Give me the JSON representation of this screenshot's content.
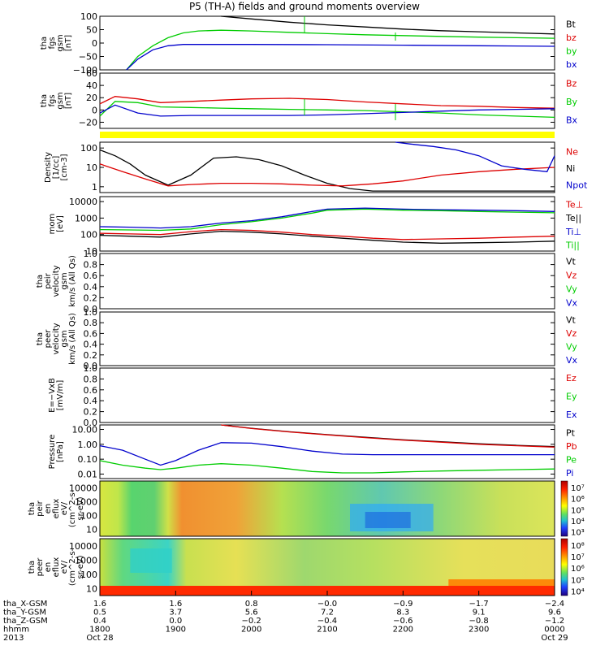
{
  "title": "P5 (TH-A) fields and ground moments overview",
  "colors": {
    "black": "#000000",
    "red": "#dd0000",
    "green": "#00cc00",
    "blue": "#0000cc",
    "yellow": "#ffff00",
    "brown": "#7a1a1a"
  },
  "chart_data": [
    {
      "type": "line",
      "panel": "fgs_gsm_total",
      "ylabel": [
        "tha",
        "fgs",
        "gsm",
        "[nT]"
      ],
      "ylim": [
        -100,
        100
      ],
      "yticks": [
        "100",
        "50",
        "0",
        "−50",
        "−100"
      ],
      "legend": [
        "Bt",
        "bz",
        "by",
        "bx"
      ],
      "legend_colors": [
        "black",
        "red",
        "green",
        "blue"
      ],
      "x_hours": [
        18.3,
        18.5,
        18.8,
        19.1,
        19.5,
        20.0,
        20.5,
        21.0,
        21.5,
        22.0,
        22.5,
        23.0,
        23.5,
        24.0
      ],
      "series": [
        {
          "name": "Bt",
          "color": "black",
          "x": [
            19.6,
            20.0,
            20.5,
            21.0,
            21.5,
            22.0,
            22.5,
            23.0,
            23.5,
            24.0
          ],
          "values": [
            100,
            90,
            78,
            68,
            60,
            52,
            46,
            42,
            38,
            34
          ]
        },
        {
          "name": "by",
          "color": "green",
          "x": [
            18.35,
            18.5,
            18.7,
            18.9,
            19.1,
            19.3,
            19.6,
            20.0,
            20.5,
            21.0,
            21.5,
            22.0,
            22.5,
            23.0,
            23.5,
            24.0
          ],
          "values": [
            -100,
            -50,
            -10,
            20,
            38,
            45,
            48,
            45,
            40,
            35,
            31,
            28,
            25,
            22,
            20,
            18
          ]
        },
        {
          "name": "bx",
          "color": "blue",
          "x": [
            18.35,
            18.5,
            18.7,
            18.9,
            19.1,
            19.5,
            20.0,
            21.0,
            22.0,
            23.0,
            24.0
          ],
          "values": [
            -100,
            -60,
            -25,
            -10,
            -5,
            -5,
            -5,
            -6,
            -8,
            -10,
            -12
          ]
        }
      ]
    },
    {
      "type": "line",
      "panel": "fgs_gsm_detrended",
      "ylabel": [
        "tha",
        "fgs",
        "gsm",
        "[nT]"
      ],
      "ylim": [
        -30,
        60
      ],
      "yticks": [
        "60",
        "40",
        "20",
        "0",
        "−20"
      ],
      "legend": [
        "Bz",
        "By",
        "Bx"
      ],
      "legend_colors": [
        "red",
        "green",
        "blue"
      ],
      "series": [
        {
          "name": "Bz",
          "color": "red",
          "x": [
            18.0,
            18.2,
            18.5,
            18.8,
            19.2,
            19.6,
            20.0,
            20.5,
            21.0,
            21.5,
            22.0,
            22.5,
            23.0,
            23.5,
            24.0
          ],
          "values": [
            10,
            22,
            18,
            12,
            14,
            16,
            18,
            19,
            17,
            13,
            10,
            7,
            6,
            4,
            3
          ]
        },
        {
          "name": "By",
          "color": "green",
          "x": [
            18.0,
            18.2,
            18.5,
            18.8,
            19.2,
            19.6,
            20.0,
            20.5,
            21.0,
            21.5,
            22.0,
            22.5,
            23.0,
            23.5,
            24.0
          ],
          "values": [
            -10,
            14,
            12,
            5,
            4,
            3,
            2,
            1,
            0,
            -1,
            -3,
            -5,
            -8,
            -10,
            -12
          ]
        },
        {
          "name": "Bx",
          "color": "blue",
          "x": [
            18.0,
            18.2,
            18.5,
            18.8,
            19.2,
            19.6,
            20.0,
            20.5,
            21.0,
            21.5,
            22.0,
            22.5,
            23.0,
            23.5,
            24.0
          ],
          "values": [
            -5,
            8,
            -5,
            -10,
            -9,
            -9,
            -9,
            -9,
            -8,
            -6,
            -4,
            -2,
            0,
            1,
            2
          ]
        }
      ]
    },
    {
      "type": "line",
      "panel": "density",
      "ylabel": [
        "Density",
        "[1/cc]",
        "[cm-3]"
      ],
      "ylim_log": [
        0.5,
        200
      ],
      "yticks": [
        "100",
        "10",
        "1"
      ],
      "legend": [
        "Ne",
        "Ni",
        "Npot"
      ],
      "legend_colors": [
        "red",
        "black",
        "blue"
      ],
      "series": [
        {
          "name": "Ni",
          "color": "black",
          "x": [
            18.0,
            18.2,
            18.4,
            18.6,
            18.9,
            19.2,
            19.5,
            19.8,
            20.1,
            20.4,
            20.7,
            21.0,
            21.3,
            21.6,
            22.0,
            22.5,
            23.0,
            23.5,
            24.0
          ],
          "values": [
            80,
            40,
            15,
            4,
            1.2,
            4,
            30,
            35,
            25,
            12,
            4,
            1.5,
            0.8,
            0.6,
            0.6,
            0.6,
            0.6,
            0.6,
            0.6
          ]
        },
        {
          "name": "Ne",
          "color": "red",
          "x": [
            18.0,
            18.3,
            18.6,
            18.9,
            19.2,
            19.6,
            20.0,
            20.4,
            20.8,
            21.2,
            21.6,
            22.0,
            22.5,
            23.0,
            23.5,
            24.0
          ],
          "values": [
            15,
            6,
            2.5,
            1.1,
            1.3,
            1.5,
            1.5,
            1.4,
            1.2,
            1.1,
            1.4,
            2.0,
            4,
            6,
            8,
            10
          ]
        },
        {
          "name": "Npot",
          "color": "blue",
          "x": [
            21.9,
            22.1,
            22.4,
            22.7,
            23.0,
            23.3,
            23.6,
            23.9,
            24.0
          ],
          "values": [
            200,
            160,
            120,
            80,
            40,
            12,
            8,
            6,
            40
          ]
        }
      ]
    },
    {
      "type": "line",
      "panel": "temperature",
      "ylabel": [
        "mom",
        "[eV]"
      ],
      "ylim_log": [
        10,
        20000
      ],
      "yticks": [
        "10000",
        "1000",
        "100",
        "10"
      ],
      "legend": [
        "Te⊥",
        "Te||",
        "Ti⊥",
        "Ti||"
      ],
      "legend_colors": [
        "red",
        "black",
        "blue",
        "green"
      ],
      "series": [
        {
          "name": "Ti⊥",
          "color": "blue",
          "x": [
            18.0,
            18.4,
            18.8,
            19.2,
            19.6,
            20.0,
            20.4,
            20.8,
            21.0,
            21.5,
            22.0,
            22.5,
            23.0,
            23.5,
            24.0
          ],
          "values": [
            300,
            280,
            250,
            300,
            500,
            700,
            1200,
            2500,
            3500,
            4000,
            3500,
            3200,
            3000,
            2800,
            2500
          ]
        },
        {
          "name": "Ti||",
          "color": "green",
          "x": [
            18.0,
            18.4,
            18.8,
            19.2,
            19.6,
            20.0,
            20.4,
            20.8,
            21.0,
            21.5,
            22.0,
            22.5,
            23.0,
            23.5,
            24.0
          ],
          "values": [
            200,
            190,
            180,
            220,
            400,
            600,
            1000,
            2000,
            3000,
            3500,
            3000,
            2800,
            2500,
            2300,
            2100
          ]
        },
        {
          "name": "Te⊥",
          "color": "red",
          "x": [
            18.0,
            18.4,
            18.8,
            19.2,
            19.6,
            20.0,
            20.4,
            20.8,
            21.2,
            21.6,
            22.0,
            22.5,
            23.0,
            23.5,
            24.0
          ],
          "values": [
            120,
            110,
            100,
            150,
            200,
            180,
            140,
            100,
            80,
            60,
            50,
            55,
            60,
            70,
            80
          ]
        },
        {
          "name": "Te||",
          "color": "black",
          "x": [
            18.0,
            18.4,
            18.8,
            19.2,
            19.6,
            20.0,
            20.4,
            20.8,
            21.2,
            21.6,
            22.0,
            22.5,
            23.0,
            23.5,
            24.0
          ],
          "values": [
            90,
            80,
            70,
            110,
            160,
            140,
            110,
            80,
            60,
            45,
            35,
            30,
            32,
            35,
            40
          ]
        }
      ]
    },
    {
      "type": "line",
      "panel": "peir_velocity",
      "ylabel": [
        "tha",
        "peir",
        "velocity",
        "gsm",
        "km/s (All Qs)"
      ],
      "ylim": [
        0,
        1
      ],
      "yticks": [
        "1.0",
        "0.8",
        "0.6",
        "0.4",
        "0.2",
        "0.0"
      ],
      "legend": [
        "Vt",
        "Vz",
        "Vy",
        "Vx"
      ],
      "legend_colors": [
        "black",
        "red",
        "green",
        "blue"
      ],
      "series": []
    },
    {
      "type": "line",
      "panel": "peer_velocity",
      "ylabel": [
        "tha",
        "peer",
        "velocity",
        "gsm",
        "km/s (All Qs)"
      ],
      "ylim": [
        0,
        1
      ],
      "yticks": [
        "1.0",
        "0.8",
        "0.6",
        "0.4",
        "0.2",
        "0.0"
      ],
      "legend": [
        "Vt",
        "Vz",
        "Vy",
        "Vx"
      ],
      "legend_colors": [
        "black",
        "red",
        "green",
        "blue"
      ],
      "series": []
    },
    {
      "type": "line",
      "panel": "efield",
      "ylabel": [
        "E=−VxB",
        "[mV/m]"
      ],
      "ylim": [
        0,
        1
      ],
      "yticks": [
        "1.0",
        "0.8",
        "0.6",
        "0.4",
        "0.2",
        "0.0"
      ],
      "legend": [
        "Ez",
        "Ey",
        "Ex"
      ],
      "legend_colors": [
        "red",
        "green",
        "blue"
      ],
      "series": []
    },
    {
      "type": "line",
      "panel": "pressure",
      "ylabel": [
        "Pressure",
        "[nPa]"
      ],
      "ylim_log": [
        0.005,
        20
      ],
      "yticks": [
        "10.00",
        "1.00",
        "0.10",
        "0.01"
      ],
      "legend": [
        "Pt",
        "Pb",
        "Pe",
        "Pi"
      ],
      "legend_colors": [
        "black",
        "red",
        "green",
        "blue"
      ],
      "series": [
        {
          "name": "Pt",
          "color": "black",
          "x": [
            19.6,
            20.0,
            20.5,
            21.0,
            21.5,
            22.0,
            22.5,
            23.0,
            23.5,
            24.0
          ],
          "values": [
            20,
            12,
            7,
            4.5,
            3,
            2,
            1.5,
            1.1,
            0.85,
            0.7
          ]
        },
        {
          "name": "Pb",
          "color": "red",
          "x": [
            19.6,
            20.0,
            20.5,
            21.0,
            21.5,
            22.0,
            22.5,
            23.0,
            23.5,
            24.0
          ],
          "values": [
            20,
            11.5,
            6.8,
            4.3,
            2.8,
            1.9,
            1.4,
            1.0,
            0.8,
            0.65
          ]
        },
        {
          "name": "Pi",
          "color": "blue",
          "x": [
            18.0,
            18.3,
            18.6,
            18.8,
            19.0,
            19.3,
            19.6,
            20.0,
            20.4,
            20.8,
            21.2,
            21.6,
            22.0,
            22.5,
            23.0,
            23.5,
            24.0
          ],
          "values": [
            0.8,
            0.4,
            0.1,
            0.04,
            0.08,
            0.4,
            1.3,
            1.2,
            0.7,
            0.35,
            0.22,
            0.2,
            0.2,
            0.2,
            0.2,
            0.2,
            0.2
          ]
        },
        {
          "name": "Pe",
          "color": "green",
          "x": [
            18.0,
            18.3,
            18.6,
            18.8,
            19.0,
            19.3,
            19.6,
            20.0,
            20.4,
            20.8,
            21.2,
            21.6,
            22.0,
            22.5,
            23.0,
            23.5,
            24.0
          ],
          "values": [
            0.08,
            0.04,
            0.025,
            0.02,
            0.025,
            0.04,
            0.05,
            0.04,
            0.025,
            0.015,
            0.012,
            0.012,
            0.014,
            0.016,
            0.018,
            0.02,
            0.022
          ]
        }
      ]
    },
    {
      "type": "heatmap",
      "panel": "peir_en_eflux",
      "ylabel": [
        "tha",
        "peir",
        "en",
        "eflux",
        "eV/",
        "(cm^2-s-",
        "sr-eV)"
      ],
      "yticks": [
        "10000",
        "1000",
        "100",
        "10"
      ],
      "colorbar_ticks": [
        "10⁷",
        "10⁶",
        "10⁵",
        "10⁴",
        "10³"
      ]
    },
    {
      "type": "heatmap",
      "panel": "peer_en_eflux",
      "ylabel": [
        "tha",
        "peer",
        "en",
        "eflux",
        "eV/",
        "(cm^2-s-",
        "sr-eV)"
      ],
      "yticks": [
        "10000",
        "1000",
        "100",
        "10"
      ],
      "colorbar_ticks": [
        "10⁸",
        "10⁷",
        "10⁶",
        "10⁵",
        "10⁴"
      ]
    }
  ],
  "xaxis": {
    "row_labels": [
      "tha_X-GSM",
      "tha_Y-GSM",
      "tha_Z-GSM",
      "hhmm",
      "2013"
    ],
    "columns": [
      {
        "vals": [
          "1.6",
          "0.5",
          "0.4",
          "1800",
          "Oct 28"
        ]
      },
      {
        "vals": [
          "1.6",
          "3.7",
          "0.0",
          "1900",
          ""
        ]
      },
      {
        "vals": [
          "0.8",
          "5.6",
          "−0.2",
          "2000",
          ""
        ]
      },
      {
        "vals": [
          "−0.0",
          "7.2",
          "−0.4",
          "2100",
          ""
        ]
      },
      {
        "vals": [
          "−0.9",
          "8.3",
          "−0.6",
          "2200",
          ""
        ]
      },
      {
        "vals": [
          "−1.7",
          "9.1",
          "−0.8",
          "2300",
          ""
        ]
      },
      {
        "vals": [
          "−2.4",
          "9.6",
          "−1.2",
          "0000",
          "Oct 29"
        ]
      }
    ]
  }
}
